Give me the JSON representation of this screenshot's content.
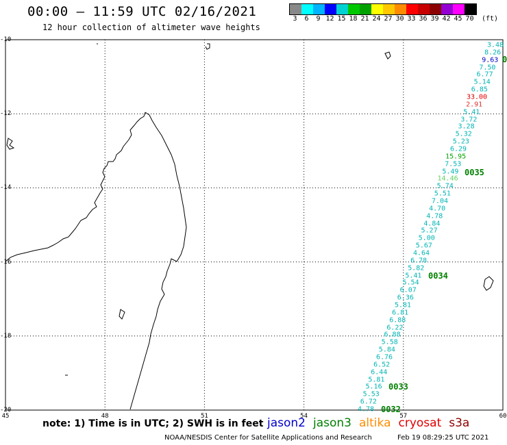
{
  "header": {
    "title": "00:00 – 11:59 UTC 02/16/2021",
    "subtitle": "12 hour collection of altimeter wave heights"
  },
  "scale": {
    "labels": [
      "3",
      "6",
      "9",
      "12",
      "15",
      "18",
      "21",
      "24",
      "27",
      "30",
      "33",
      "36",
      "39",
      "42",
      "45",
      "70"
    ],
    "unit": "(ft)",
    "colors": [
      "#888888",
      "#00ffff",
      "#00b4ff",
      "#0000ff",
      "#00d2d2",
      "#00c800",
      "#00a000",
      "#ffff00",
      "#ffc800",
      "#ff8c00",
      "#ff0000",
      "#c80000",
      "#8b0000",
      "#9400d3",
      "#ff00ff",
      "#000000"
    ]
  },
  "axes": {
    "lat_labels": [
      "-10",
      "-12",
      "-14",
      "-16",
      "-18",
      "-20"
    ],
    "lon_labels": [
      "45",
      "48",
      "51",
      "54",
      "57",
      "60"
    ]
  },
  "wave_heights": [
    {
      "value": "3.48",
      "color": "#00b4b4"
    },
    {
      "value": "8.26",
      "color": "#00b4b4"
    },
    {
      "value": "9.63",
      "color": "#0000c8"
    },
    {
      "value": "7.50",
      "color": "#00b4b4"
    },
    {
      "value": "6.77",
      "color": "#00b4b4"
    },
    {
      "value": "5.14",
      "color": "#00b4b4"
    },
    {
      "value": "6.85",
      "color": "#00b4b4"
    },
    {
      "value": "33.00",
      "color": "#e00000"
    },
    {
      "value": "2.91",
      "color": "#e03030"
    },
    {
      "value": "5.41",
      "color": "#00b4b4"
    },
    {
      "value": "3.72",
      "color": "#00b4b4"
    },
    {
      "value": "3.28",
      "color": "#00b4b4"
    },
    {
      "value": "5.32",
      "color": "#00b4b4"
    },
    {
      "value": "5.23",
      "color": "#00b4b4"
    },
    {
      "value": "6.29",
      "color": "#00b4b4"
    },
    {
      "value": "15.95",
      "color": "#00a000"
    },
    {
      "value": "7.53",
      "color": "#00b4b4"
    },
    {
      "value": "5.49",
      "color": "#00b4b4"
    },
    {
      "value": "14.46",
      "color": "#60d060"
    },
    {
      "value": "5.74",
      "color": "#00b4b4"
    },
    {
      "value": "5.51",
      "color": "#00b4b4"
    },
    {
      "value": "7.04",
      "color": "#00b4b4"
    },
    {
      "value": "4.70",
      "color": "#00b4b4"
    },
    {
      "value": "4.78",
      "color": "#00b4b4"
    },
    {
      "value": "4.84",
      "color": "#00b4b4"
    },
    {
      "value": "5.27",
      "color": "#00b4b4"
    },
    {
      "value": "5.00",
      "color": "#00b4b4"
    },
    {
      "value": "5.67",
      "color": "#00b4b4"
    },
    {
      "value": "4.64",
      "color": "#00b4b4"
    },
    {
      "value": "6.78",
      "color": "#00b4b4"
    },
    {
      "value": "5.82",
      "color": "#00b4b4"
    },
    {
      "value": "5.41",
      "color": "#00b4b4"
    },
    {
      "value": "5.54",
      "color": "#00b4b4"
    },
    {
      "value": "6.07",
      "color": "#00b4b4"
    },
    {
      "value": "6.36",
      "color": "#00b4b4"
    },
    {
      "value": "5.81",
      "color": "#00b4b4"
    },
    {
      "value": "6.81",
      "color": "#00b4b4"
    },
    {
      "value": "6.88",
      "color": "#00b4b4"
    },
    {
      "value": "6.22",
      "color": "#00b4b4"
    },
    {
      "value": "6.88",
      "color": "#00b4b4"
    },
    {
      "value": "5.58",
      "color": "#00b4b4"
    },
    {
      "value": "5.84",
      "color": "#00b4b4"
    },
    {
      "value": "6.76",
      "color": "#00b4b4"
    },
    {
      "value": "6.52",
      "color": "#00b4b4"
    },
    {
      "value": "6.44",
      "color": "#00b4b4"
    },
    {
      "value": "5.81",
      "color": "#00b4b4"
    },
    {
      "value": "5.16",
      "color": "#00b4b4"
    },
    {
      "value": "5.53",
      "color": "#00b4b4"
    },
    {
      "value": "6.72",
      "color": "#00b4b4"
    },
    {
      "value": "4.78",
      "color": "#00b4b4"
    }
  ],
  "pass_labels": [
    "0",
    "0035",
    "0034",
    "0033",
    "0032"
  ],
  "footer": {
    "note": "note: 1) Time is in UTC; 2) SWH is in feet",
    "satellites": [
      {
        "name": "jason2",
        "color": "#0000cc"
      },
      {
        "name": "jason3",
        "color": "#008000"
      },
      {
        "name": "altika",
        "color": "#ff8c00"
      },
      {
        "name": "cryosat",
        "color": "#e00000"
      },
      {
        "name": "s3a",
        "color": "#8b0000"
      }
    ],
    "credit": "NOAA/NESDIS Center for Satellite Applications and Research",
    "timestamp": "Feb 19 08:29:25 UTC 2021"
  }
}
